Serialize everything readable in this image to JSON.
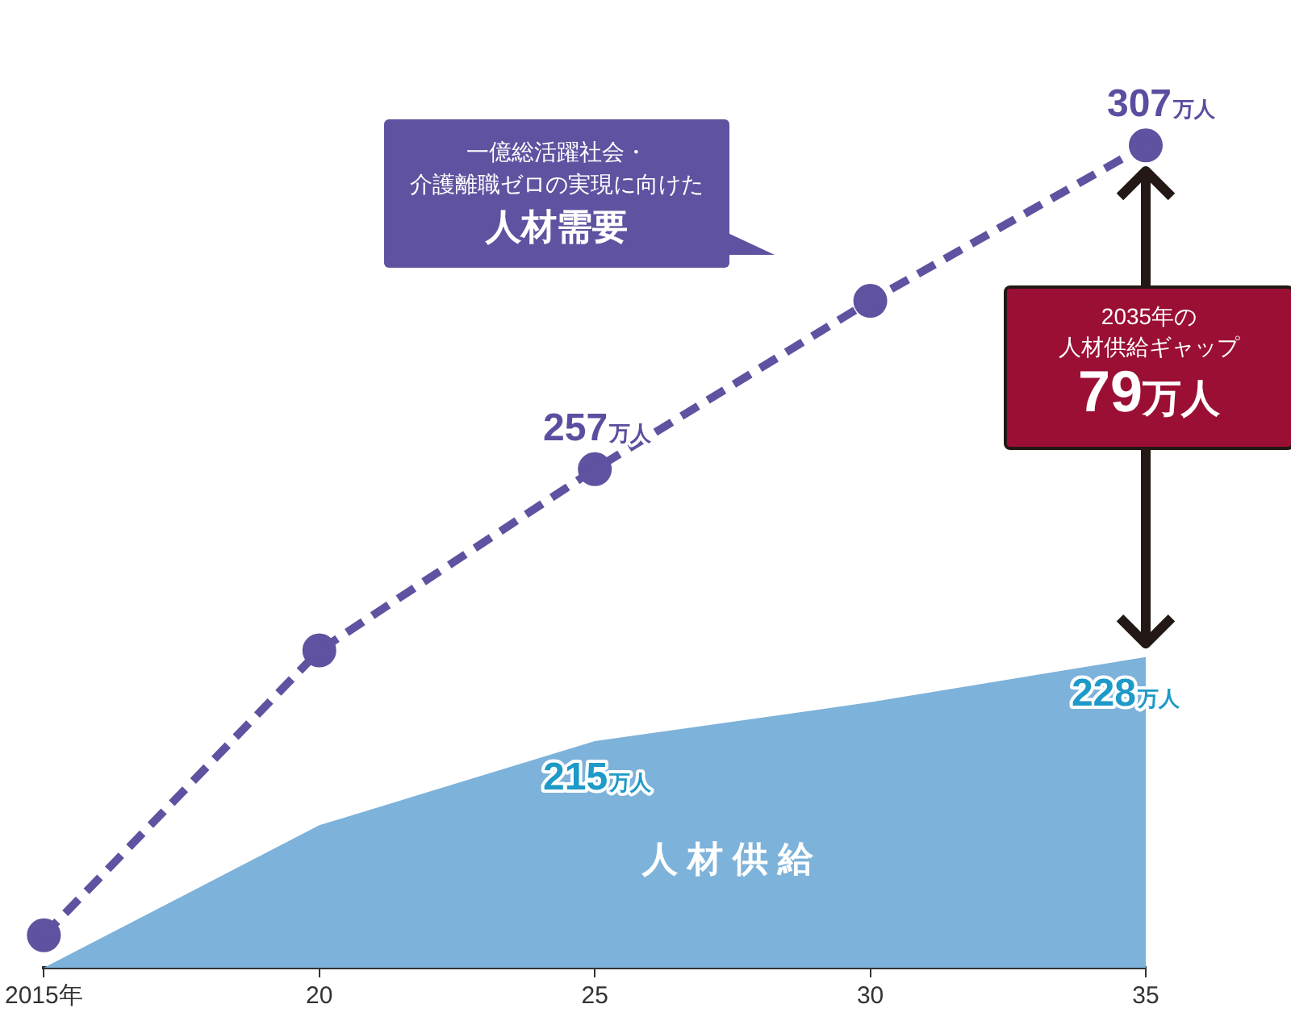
{
  "chart_data": {
    "type": "line",
    "categories": [
      "2015年",
      "20",
      "25",
      "30",
      "35"
    ],
    "series": [
      {
        "color": "#5f52a0",
        "values": [
          185,
          229,
          257,
          283,
          307
        ],
        "value_labels": [
          null,
          null,
          "257万人",
          null,
          "307万人"
        ],
        "marker": "circle",
        "line_style": "dashed"
      },
      {
        "name": "人材供給",
        "type": "area",
        "color": "#7db2da",
        "values": [
          180,
          202,
          215,
          221,
          228
        ],
        "value_labels": [
          null,
          null,
          "215万人",
          null,
          "228万人"
        ]
      }
    ],
    "tick_labels": "x",
    "grid": false,
    "legend": false,
    "annotations": [
      "一億総活躍社会・",
      "介護離職ゼロの実現に向けた",
      "人材需要",
      "2035年の",
      "人材供給ギャップ",
      "79万人"
    ]
  }
}
